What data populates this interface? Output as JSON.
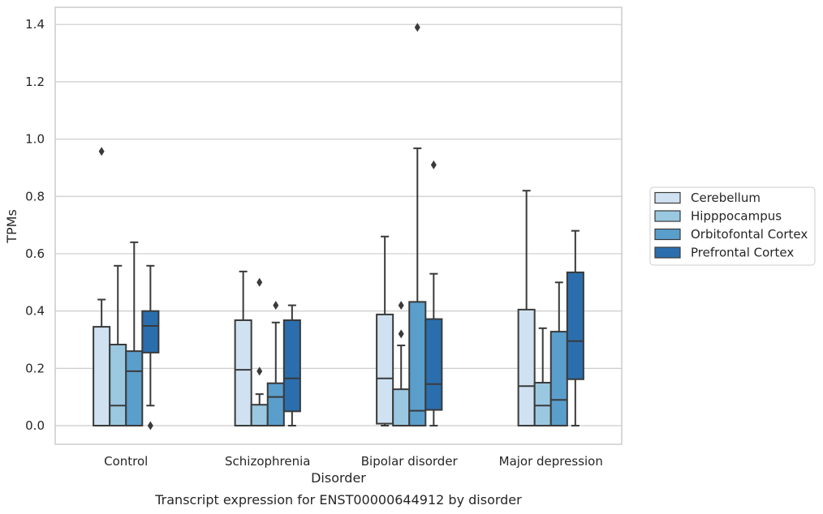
{
  "chart_data": {
    "type": "box",
    "caption": "Transcript expression for ENST00000644912 by disorder",
    "xlabel": "Disorder",
    "ylabel": "TPMs",
    "ylim": [
      -0.065,
      1.46
    ],
    "yticks": [
      0.0,
      0.2,
      0.4,
      0.6,
      0.8,
      1.0,
      1.2,
      1.4
    ],
    "ytick_labels": [
      "0.0",
      "0.2",
      "0.4",
      "0.6",
      "0.8",
      "1.0",
      "1.2",
      "1.4"
    ],
    "grid": "horizontal",
    "legend_position": "right",
    "categories": [
      "Control",
      "Schizophrenia",
      "Bipolar disorder",
      "Major depression"
    ],
    "series": [
      {
        "name": "Cerebellum",
        "color": "#d0e2f1",
        "boxes": [
          {
            "whislo": 0.0,
            "q1": 0.0,
            "med": 0.0,
            "q3": 0.345,
            "whishi": 0.44,
            "fliers": [
              0.957
            ]
          },
          {
            "whislo": 0.0,
            "q1": 0.0,
            "med": 0.195,
            "q3": 0.368,
            "whishi": 0.538,
            "fliers": []
          },
          {
            "whislo": 0.0,
            "q1": 0.007,
            "med": 0.165,
            "q3": 0.388,
            "whishi": 0.66,
            "fliers": []
          },
          {
            "whislo": 0.0,
            "q1": 0.0,
            "med": 0.138,
            "q3": 0.405,
            "whishi": 0.82,
            "fliers": []
          }
        ]
      },
      {
        "name": "Hipppocampus",
        "color": "#9ac8e0",
        "boxes": [
          {
            "whislo": 0.0,
            "q1": 0.0,
            "med": 0.07,
            "q3": 0.283,
            "whishi": 0.558,
            "fliers": []
          },
          {
            "whislo": 0.0,
            "q1": 0.0,
            "med": 0.0,
            "q3": 0.073,
            "whishi": 0.11,
            "fliers": [
              0.19,
              0.5
            ]
          },
          {
            "whislo": 0.0,
            "q1": 0.0,
            "med": 0.0,
            "q3": 0.127,
            "whishi": 0.28,
            "fliers": [
              0.32,
              0.42
            ]
          },
          {
            "whislo": 0.0,
            "q1": 0.0,
            "med": 0.07,
            "q3": 0.15,
            "whishi": 0.34,
            "fliers": []
          }
        ]
      },
      {
        "name": "Orbitofontal Cortex",
        "color": "#5a9ecc",
        "boxes": [
          {
            "whislo": 0.0,
            "q1": 0.0,
            "med": 0.19,
            "q3": 0.26,
            "whishi": 0.64,
            "fliers": []
          },
          {
            "whislo": 0.0,
            "q1": 0.0,
            "med": 0.1,
            "q3": 0.148,
            "whishi": 0.36,
            "fliers": [
              0.42
            ]
          },
          {
            "whislo": 0.0,
            "q1": 0.0,
            "med": 0.052,
            "q3": 0.432,
            "whishi": 0.968,
            "fliers": [
              1.39
            ]
          },
          {
            "whislo": 0.0,
            "q1": 0.0,
            "med": 0.09,
            "q3": 0.328,
            "whishi": 0.5,
            "fliers": []
          }
        ]
      },
      {
        "name": "Prefrontal Cortex",
        "color": "#2a6ead",
        "boxes": [
          {
            "whislo": 0.07,
            "q1": 0.255,
            "med": 0.348,
            "q3": 0.4,
            "whishi": 0.558,
            "fliers": [
              0.0
            ]
          },
          {
            "whislo": 0.0,
            "q1": 0.05,
            "med": 0.165,
            "q3": 0.368,
            "whishi": 0.42,
            "fliers": []
          },
          {
            "whislo": 0.0,
            "q1": 0.055,
            "med": 0.145,
            "q3": 0.372,
            "whishi": 0.53,
            "fliers": [
              0.91
            ]
          },
          {
            "whislo": 0.0,
            "q1": 0.162,
            "med": 0.295,
            "q3": 0.535,
            "whishi": 0.68,
            "fliers": []
          }
        ]
      }
    ]
  }
}
